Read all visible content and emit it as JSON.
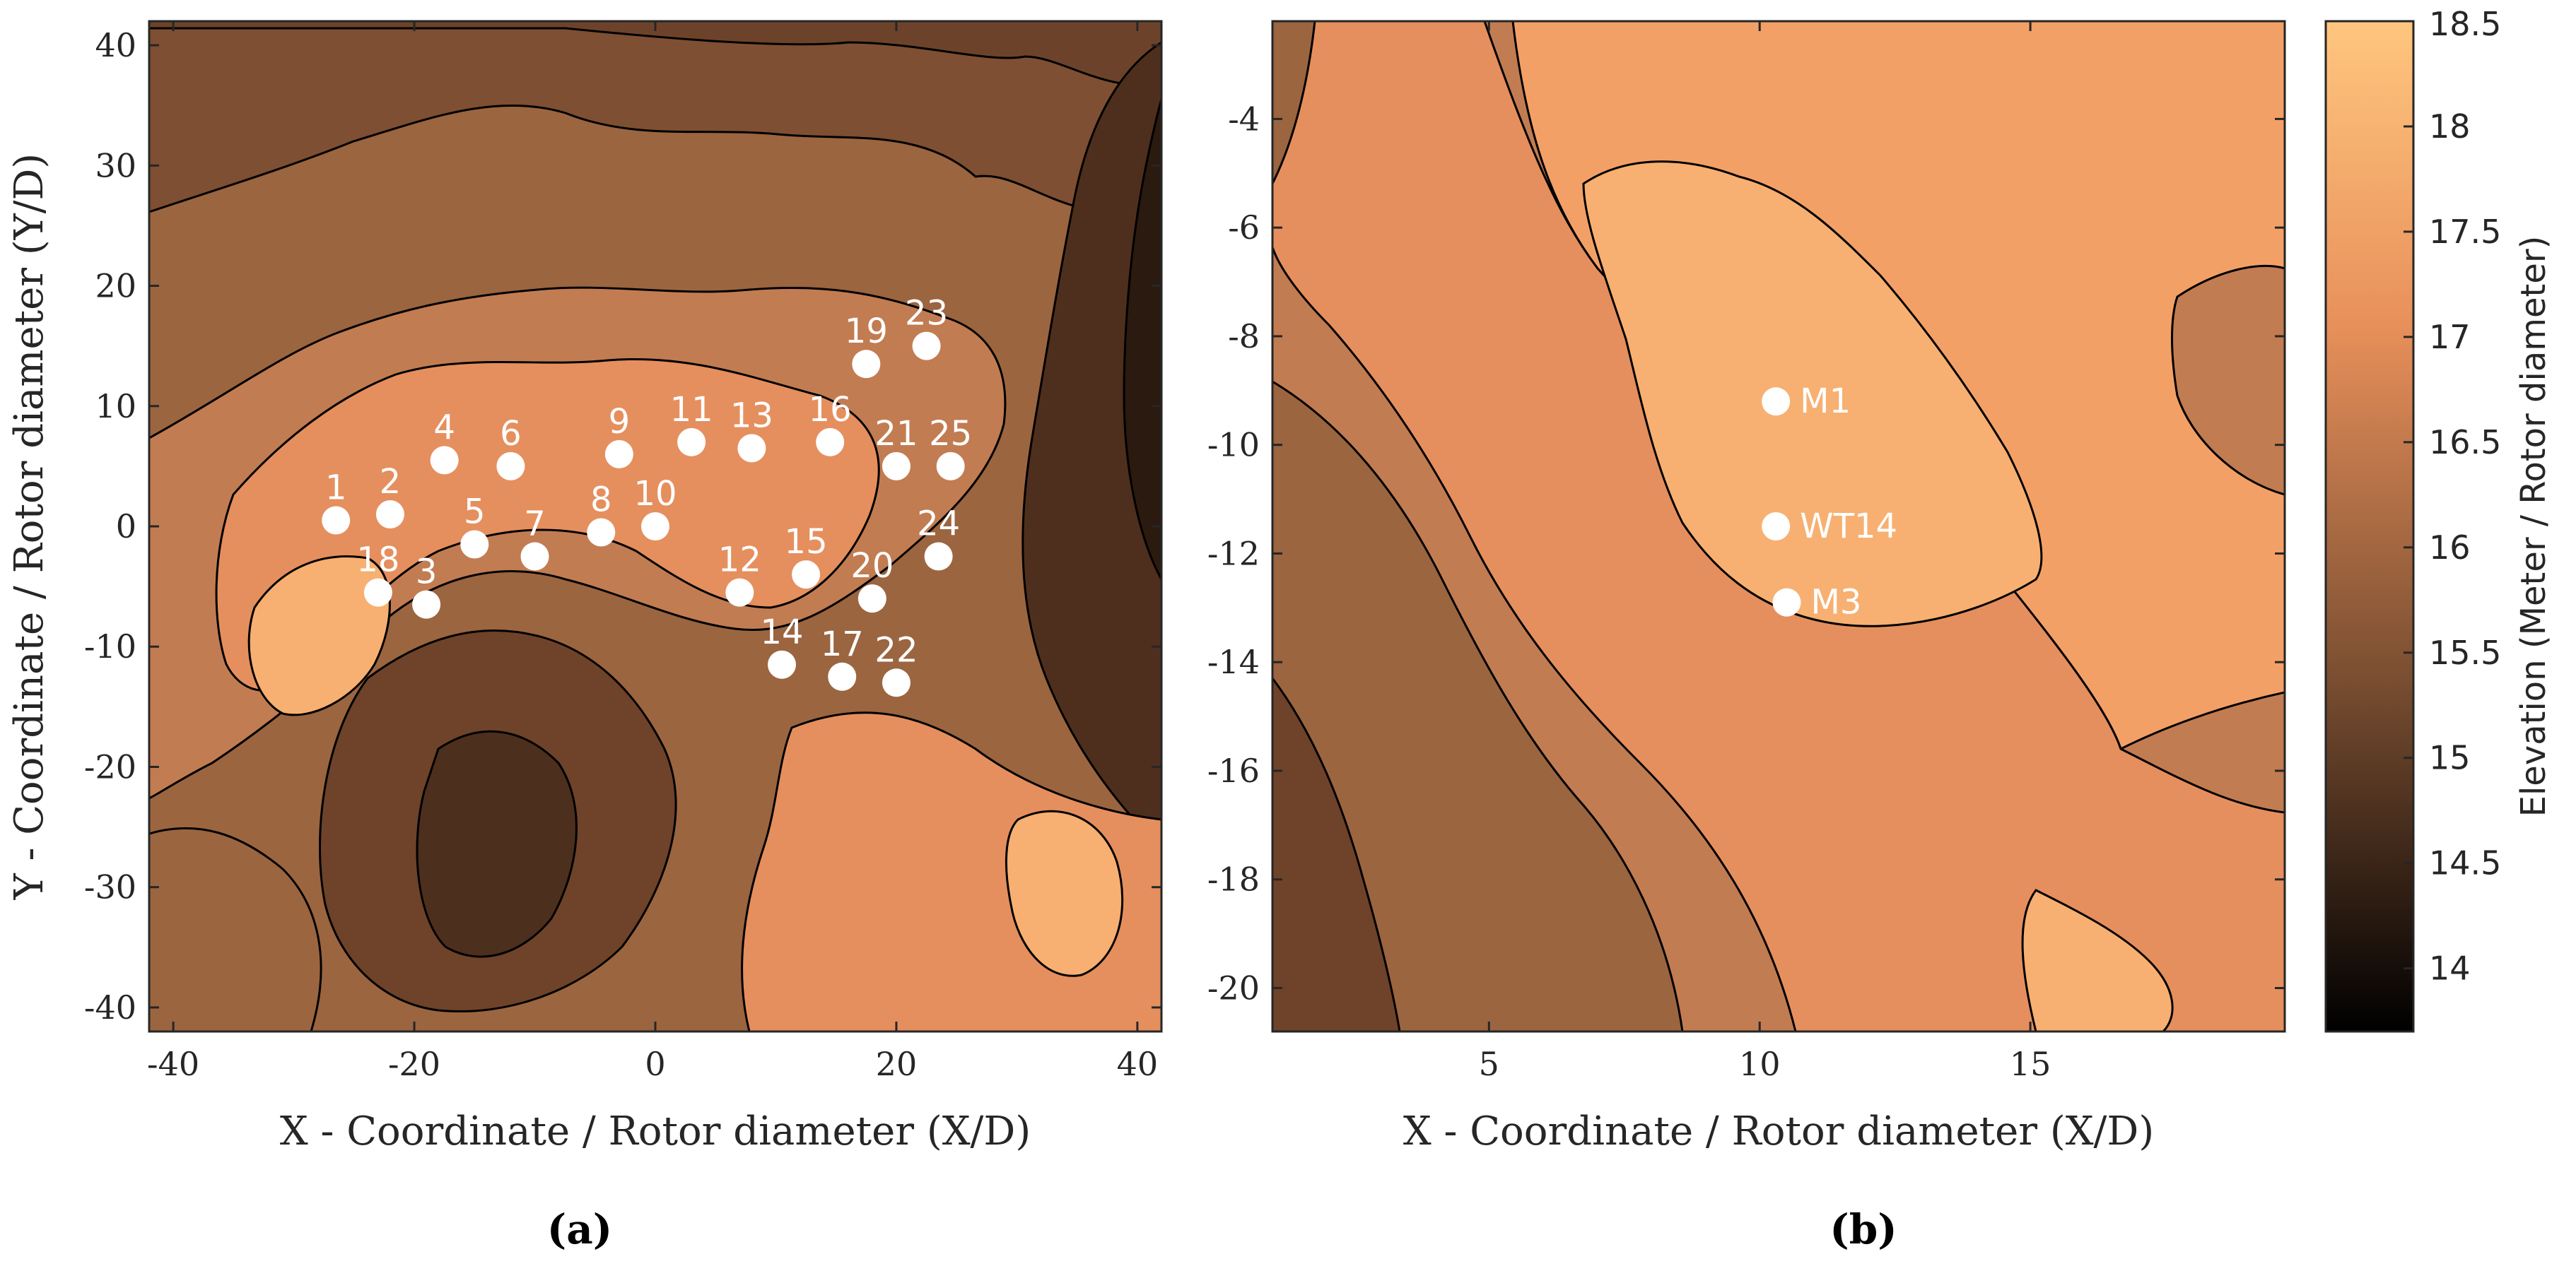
{
  "chart_data": [
    {
      "panel": "(a)",
      "type": "contour",
      "xlabel": "X - Coordinate / Rotor diameter (X/D)",
      "ylabel": "Y - Coordinate / Rotor diameter (Y/D)",
      "xlim": [
        -42,
        42
      ],
      "ylim": [
        -42,
        42
      ],
      "xticks": [
        -40,
        -20,
        0,
        20,
        40
      ],
      "yticks": [
        -40,
        -30,
        -20,
        -10,
        0,
        10,
        20,
        30,
        40
      ],
      "series": [
        {
          "name": "turbines",
          "points": [
            {
              "label": "1",
              "x": -26.5,
              "y": 0.5
            },
            {
              "label": "2",
              "x": -22,
              "y": 1
            },
            {
              "label": "3",
              "x": -19,
              "y": -6.5
            },
            {
              "label": "4",
              "x": -17.5,
              "y": 5.5
            },
            {
              "label": "5",
              "x": -15,
              "y": -1.5
            },
            {
              "label": "6",
              "x": -12,
              "y": 5
            },
            {
              "label": "7",
              "x": -10,
              "y": -2.5
            },
            {
              "label": "8",
              "x": -4.5,
              "y": -0.5
            },
            {
              "label": "9",
              "x": -3,
              "y": 6
            },
            {
              "label": "10",
              "x": 0,
              "y": 0
            },
            {
              "label": "11",
              "x": 3,
              "y": 7
            },
            {
              "label": "12",
              "x": 7,
              "y": -5.5
            },
            {
              "label": "13",
              "x": 8,
              "y": 6.5
            },
            {
              "label": "14",
              "x": 10.5,
              "y": -11.5
            },
            {
              "label": "15",
              "x": 12.5,
              "y": -4
            },
            {
              "label": "16",
              "x": 14.5,
              "y": 7
            },
            {
              "label": "17",
              "x": 15.5,
              "y": -12.5
            },
            {
              "label": "18",
              "x": -23,
              "y": -5.5
            },
            {
              "label": "19",
              "x": 17.5,
              "y": 13.5
            },
            {
              "label": "20",
              "x": 18,
              "y": -6
            },
            {
              "label": "21",
              "x": 20,
              "y": 5
            },
            {
              "label": "22",
              "x": 20,
              "y": -13
            },
            {
              "label": "23",
              "x": 22.5,
              "y": 15
            },
            {
              "label": "24",
              "x": 23.5,
              "y": -2.5
            },
            {
              "label": "25",
              "x": 24.5,
              "y": 5
            }
          ]
        }
      ]
    },
    {
      "panel": "(b)",
      "type": "contour",
      "xlabel": "X - Coordinate / Rotor diameter (X/D)",
      "ylabel": "",
      "xlim": [
        1,
        19.7
      ],
      "ylim": [
        -20.8,
        -2.2
      ],
      "xticks": [
        5,
        10,
        15
      ],
      "yticks": [
        -20,
        -18,
        -16,
        -14,
        -12,
        -10,
        -8,
        -6,
        -4
      ],
      "series": [
        {
          "name": "measurement points",
          "points": [
            {
              "label": "M1",
              "x": 10.3,
              "y": -9.2
            },
            {
              "label": "WT14",
              "x": 10.3,
              "y": -11.5
            },
            {
              "label": "M3",
              "x": 10.5,
              "y": -12.9
            }
          ]
        }
      ]
    }
  ],
  "colorbar": {
    "label": "Elevation (Meter / Rotor diameter)",
    "range": [
      13.7,
      18.5
    ],
    "ticks": [
      "18.5",
      "18",
      "17.5",
      "17",
      "16.5",
      "16",
      "15.5",
      "15",
      "14.5",
      "14"
    ],
    "colormap": "copper"
  },
  "panel_labels": [
    "(a)",
    "(b)"
  ]
}
